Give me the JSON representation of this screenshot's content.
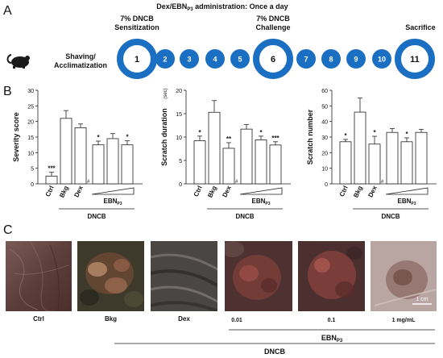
{
  "panel_a": {
    "letter": "A",
    "header": "Dex/EBN",
    "header_sub": "P3",
    "header_tail": " administration: Once a day",
    "left_label_1": "Shaving/",
    "left_label_2": "Acclimatization",
    "sensitization_1": "7% DNCB",
    "sensitization_2": "Sensitization",
    "challenge_1": "7% DNCB",
    "challenge_2": "Challenge",
    "sacrifice": "Sacrifice",
    "days": [
      "1",
      "2",
      "3",
      "4",
      "5",
      "6",
      "7",
      "8",
      "9",
      "10",
      "11"
    ],
    "ring_color": "#1b6fc2"
  },
  "panel_b": {
    "letter": "B",
    "group_label": "DNCB",
    "ebn_label": "EBN",
    "ebn_sub": "P3"
  },
  "chart_data": [
    {
      "type": "bar",
      "ylabel": "Severity score",
      "ylim": [
        0,
        30
      ],
      "yticks": [
        "0",
        "5",
        "10",
        "15",
        "20",
        "25",
        "30"
      ],
      "categories": [
        "Ctrl",
        "Bkg",
        "Dex",
        "",
        "",
        ""
      ],
      "values": [
        2.5,
        21,
        18,
        12.5,
        14.5,
        12.5
      ],
      "errors": [
        1.2,
        2.5,
        1.2,
        1.2,
        1.6,
        1.3
      ],
      "marks": [
        "***",
        "",
        "",
        "*",
        "",
        "*"
      ],
      "hash_mark": "#"
    },
    {
      "type": "bar",
      "ylabel": "Scratch duration",
      "yunit": "(sec)",
      "ylim": [
        0,
        20
      ],
      "yticks": [
        "0",
        "5",
        "10",
        "15",
        "20"
      ],
      "categories": [
        "Ctrl",
        "Bkg",
        "Dex",
        "",
        "",
        ""
      ],
      "values": [
        9.2,
        15.3,
        7.6,
        11.7,
        9.4,
        8.3
      ],
      "errors": [
        1.0,
        2.5,
        1.2,
        1.0,
        0.8,
        0.7
      ],
      "marks": [
        "*",
        "",
        "**",
        "",
        "*",
        "***"
      ],
      "hash_mark": "#"
    },
    {
      "type": "bar",
      "ylabel": "Scratch number",
      "ylim": [
        0,
        60
      ],
      "yticks": [
        "0",
        "10",
        "20",
        "30",
        "40",
        "50",
        "60"
      ],
      "categories": [
        "Ctrl",
        "Bkg",
        "Dex",
        "",
        "",
        ""
      ],
      "values": [
        27,
        46,
        25.5,
        33,
        27,
        33
      ],
      "errors": [
        1.5,
        9,
        5,
        2.5,
        2.5,
        2
      ],
      "marks": [
        "*",
        "",
        "*",
        "",
        "*",
        ""
      ],
      "hash_mark": "#"
    }
  ],
  "panel_c": {
    "letter": "C",
    "labels": [
      "Ctrl",
      "Bkg",
      "Dex",
      "0.01",
      "0.1",
      "1 mg/mL"
    ],
    "scale_bar": "1 cm",
    "ebn_label": "EBN",
    "ebn_sub": "P3",
    "group_label": "DNCB"
  }
}
